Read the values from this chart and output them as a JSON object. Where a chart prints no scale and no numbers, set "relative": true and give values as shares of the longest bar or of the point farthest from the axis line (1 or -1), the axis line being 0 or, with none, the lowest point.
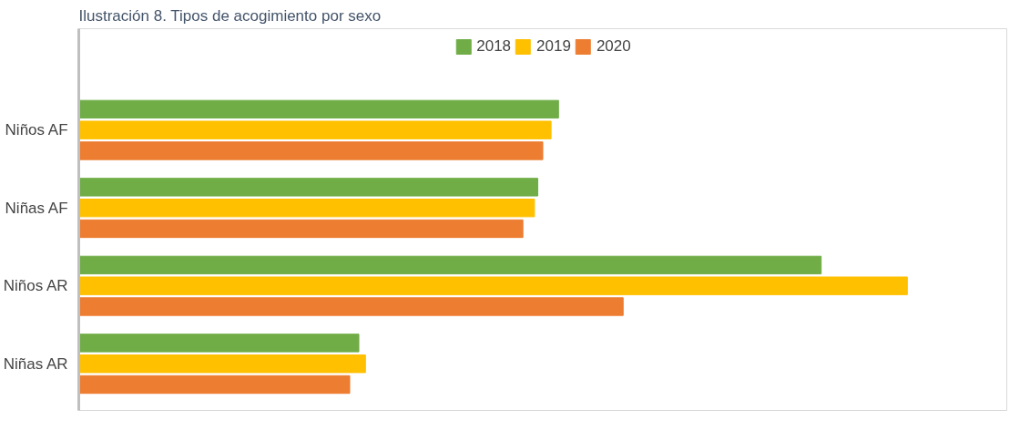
{
  "chart_data": {
    "type": "bar",
    "orientation": "horizontal",
    "relative": true,
    "title": "Ilustración 8. Tipos de acogimiento por sexo",
    "categories": [
      "Niños AF",
      "Niñas AF",
      "Niños AR",
      "Niñas AR"
    ],
    "legend": "top",
    "grid": false,
    "series": [
      {
        "name": "2018",
        "color": "#70ad47",
        "values": [
          0.579,
          0.554,
          0.896,
          0.338
        ]
      },
      {
        "name": "2019",
        "color": "#ffc000",
        "values": [
          0.57,
          0.55,
          1,
          0.346
        ]
      },
      {
        "name": "2020",
        "color": "#ed7d31",
        "values": [
          0.56,
          0.536,
          0.657,
          0.327
        ]
      }
    ]
  }
}
